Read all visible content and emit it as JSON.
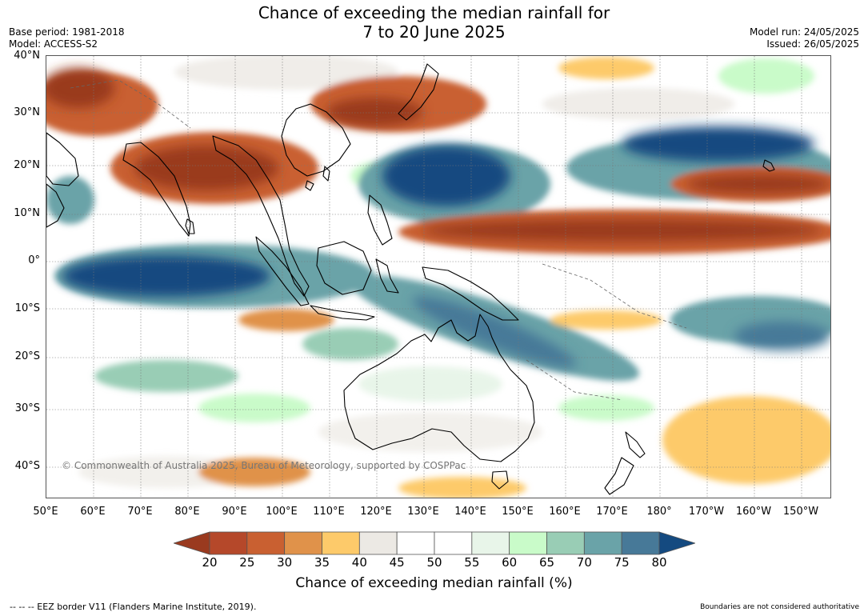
{
  "title": {
    "line1": "Chance of exceeding the median rainfall for",
    "line2": "7 to 20 June 2025"
  },
  "meta": {
    "base_period": "Base period: 1981-2018",
    "model": "Model: ACCESS-S2",
    "model_run": "Model run: 24/05/2025",
    "issued": "Issued: 26/05/2025"
  },
  "map": {
    "lat_labels": [
      "40°N",
      "30°N",
      "20°N",
      "10°N",
      "0°",
      "10°S",
      "20°S",
      "30°S",
      "40°S"
    ],
    "lon_labels": [
      "50°E",
      "60°E",
      "70°E",
      "80°E",
      "90°E",
      "100°E",
      "110°E",
      "120°E",
      "130°E",
      "140°E",
      "150°E",
      "160°E",
      "170°E",
      "180°",
      "170°W",
      "160°W",
      "150°W"
    ],
    "copyright": "© Commonwealth of Australia 2025, Bureau of Meteorology, supported by COSPPac"
  },
  "colorbar": {
    "ticks": [
      "20",
      "25",
      "30",
      "35",
      "40",
      "45",
      "50",
      "55",
      "60",
      "65",
      "70",
      "75",
      "80"
    ],
    "colors": [
      "#9a3a1f",
      "#b5482a",
      "#c96031",
      "#e0924a",
      "#fdca6a",
      "#ece9e4",
      "#ffffff",
      "#ffffff",
      "#e8f5e9",
      "#c9fbc9",
      "#99cdb5",
      "#6aa3a8",
      "#477998",
      "#144a80"
    ],
    "label": "Chance of exceeding median rainfall (%)"
  },
  "footer": {
    "eez": "--  --  -- EEZ border V11 (Flanders Marine Institute, 2019).",
    "disclaimer": "Boundaries are not considered authoritative"
  }
}
